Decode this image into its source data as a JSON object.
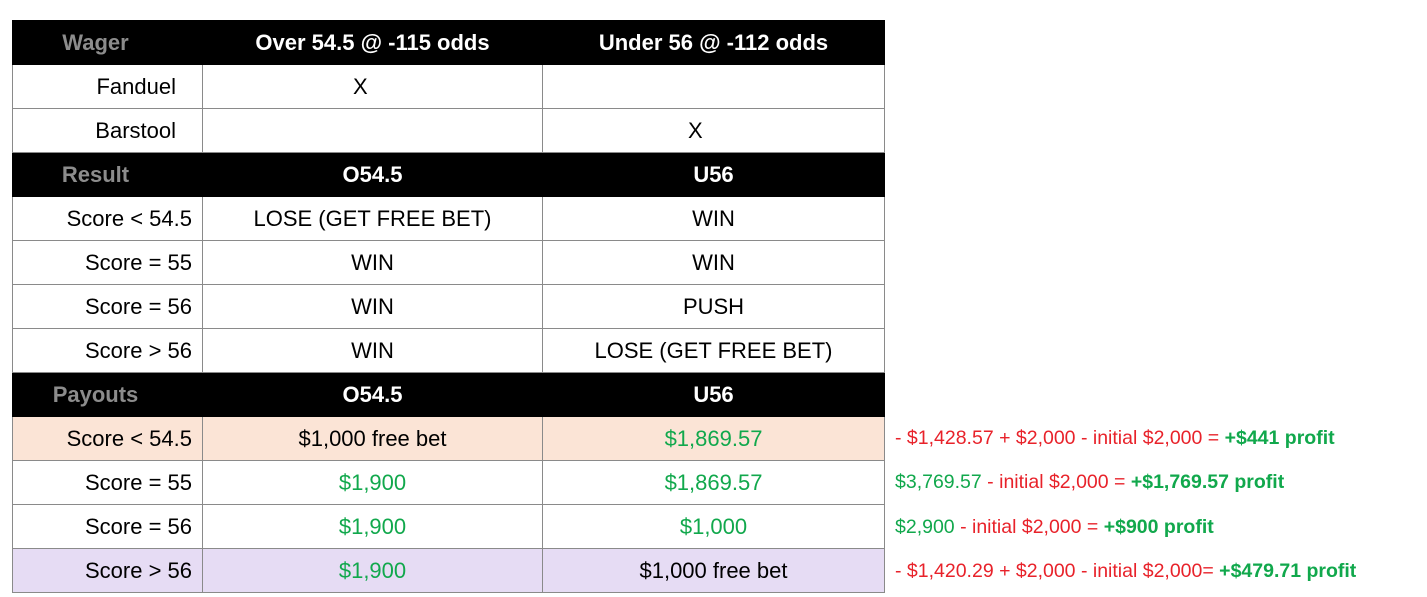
{
  "table": {
    "header": {
      "label": "Wager",
      "col1": "Over 54.5 @ -115 odds",
      "col2": "Under 56 @ -112 odds"
    },
    "books": [
      {
        "label": "Fanduel",
        "col1": "X",
        "col2": ""
      },
      {
        "label": "Barstool",
        "col1": "",
        "col2": "X"
      }
    ],
    "result_header": {
      "label": "Result",
      "col1": "O54.5",
      "col2": "U56"
    },
    "results": [
      {
        "label": "Score < 54.5",
        "col1": "LOSE (GET FREE BET)",
        "col2": "WIN"
      },
      {
        "label": "Score = 55",
        "col1": "WIN",
        "col2": "WIN"
      },
      {
        "label": "Score = 56",
        "col1": "WIN",
        "col2": "PUSH"
      },
      {
        "label": "Score > 56",
        "col1": "WIN",
        "col2": "LOSE (GET FREE BET)"
      }
    ],
    "payout_header": {
      "label": "Payouts",
      "col1": "O54.5",
      "col2": "U56"
    },
    "payouts": [
      {
        "label": "Score < 54.5",
        "col1": "$1,000 free bet",
        "col2": "$1,869.57"
      },
      {
        "label": "Score = 55",
        "col1": "$1,900",
        "col2": "$1,869.57"
      },
      {
        "label": "Score = 56",
        "col1": "$1,900",
        "col2": "$1,000"
      },
      {
        "label": "Score > 56",
        "col1": "$1,900",
        "col2": "$1,000 free bet"
      }
    ]
  },
  "notes": [
    {
      "p1": "- $1,428.57 + $2,000",
      "p2": " - ",
      "p3": "initial $2,000 =",
      "p4": " +$441 profit"
    },
    {
      "p1": "$3,769.57",
      "p2": " - ",
      "p3": "initial $2,000 =",
      "p4": " +$1,769.57 profit"
    },
    {
      "p1": "$2,900",
      "p2": " - ",
      "p3": "initial $2,000 =",
      "p4": " +$900 profit"
    },
    {
      "p1": "- $1,420.29 + $2,000",
      "p2": " - ",
      "p3": "initial $2,000=",
      "p4": " +$479.71 profit"
    }
  ],
  "colors": {
    "green": "#11a84c",
    "red": "#e8222a",
    "peach": "#fbe4d6",
    "lavender": "#e6dcf4",
    "header_bg": "#000000",
    "header_label": "#8c8c8c"
  }
}
